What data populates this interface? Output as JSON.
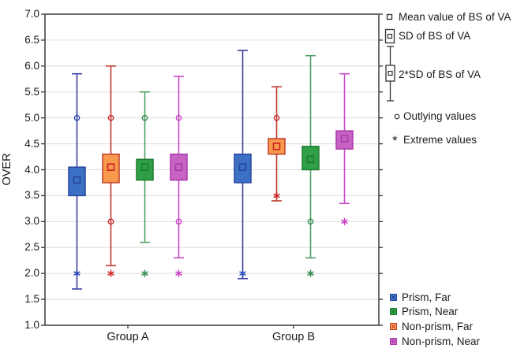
{
  "chart_data": {
    "type": "boxplot",
    "title": "",
    "ylabel": "OVER",
    "ylim": [
      1.0,
      7.0
    ],
    "ytick_step": 0.5,
    "yticks": [
      "7.0",
      "6.5",
      "6.0",
      "5.5",
      "5.0",
      "4.5",
      "4.0",
      "3.5",
      "3.0",
      "2.5",
      "2.0",
      "1.5",
      "1.0"
    ],
    "categories": [
      "Group A",
      "Group B"
    ],
    "grid": true,
    "legend_position": "right",
    "series": [
      {
        "name": "Prism, Far",
        "colors": {
          "fill": "#3B70C4",
          "border": "#27479E",
          "line": "#3A3F9E",
          "marker": "#27479E",
          "point": "#2244BB"
        },
        "boxes": [
          {
            "group": "Group A",
            "mean": 3.8,
            "box_low": 3.5,
            "box_high": 4.05,
            "whisker_low": 1.7,
            "whisker_high": 5.85,
            "outliers": [
              5.0
            ],
            "extremes": [
              2.0
            ]
          },
          {
            "group": "Group B",
            "mean": 4.05,
            "box_low": 3.75,
            "box_high": 4.3,
            "whisker_low": 1.9,
            "whisker_high": 6.3,
            "outliers": [],
            "extremes": [
              2.0
            ]
          }
        ]
      },
      {
        "name": "Non-prism, Far",
        "colors": {
          "fill": "#F79A4D",
          "border": "#C43B28",
          "line": "#C03A2E",
          "marker": "#CC2222",
          "point": "#CC2222"
        },
        "boxes": [
          {
            "group": "Group A",
            "mean": 4.05,
            "box_low": 3.75,
            "box_high": 4.3,
            "whisker_low": 2.15,
            "whisker_high": 6.0,
            "outliers": [
              5.0,
              3.0
            ],
            "extremes": [
              2.0
            ]
          },
          {
            "group": "Group B",
            "mean": 4.45,
            "box_low": 4.3,
            "box_high": 4.6,
            "whisker_low": 3.4,
            "whisker_high": 5.6,
            "outliers": [
              5.0
            ],
            "extremes": [
              3.5
            ]
          }
        ]
      },
      {
        "name": "Prism, Near",
        "colors": {
          "fill": "#2FA046",
          "border": "#1E7A30",
          "line": "#4E9E63",
          "marker": "#1E7A30",
          "point": "#2E8B4A"
        },
        "boxes": [
          {
            "group": "Group A",
            "mean": 4.05,
            "box_low": 3.8,
            "box_high": 4.2,
            "whisker_low": 2.6,
            "whisker_high": 5.5,
            "outliers": [
              5.0
            ],
            "extremes": [
              2.0
            ]
          },
          {
            "group": "Group B",
            "mean": 4.2,
            "box_low": 4.0,
            "box_high": 4.45,
            "whisker_low": 2.3,
            "whisker_high": 6.2,
            "outliers": [
              3.0
            ],
            "extremes": [
              2.0
            ]
          }
        ]
      },
      {
        "name": "Non-prism, Near",
        "colors": {
          "fill": "#C763C3",
          "border": "#A93BA9",
          "line": "#C74BC7",
          "marker": "#A93BA9",
          "point": "#C73BC7"
        },
        "boxes": [
          {
            "group": "Group A",
            "mean": 4.05,
            "box_low": 3.8,
            "box_high": 4.3,
            "whisker_low": 2.3,
            "whisker_high": 5.8,
            "outliers": [
              5.0,
              3.0
            ],
            "extremes": [
              2.0
            ]
          },
          {
            "group": "Group B",
            "mean": 4.6,
            "box_low": 4.4,
            "box_high": 4.75,
            "whisker_low": 3.35,
            "whisker_high": 5.85,
            "outliers": [],
            "extremes": [
              3.0
            ]
          }
        ]
      }
    ]
  },
  "symbol_legend": {
    "mean": "Mean value of BS of  VA",
    "sd": "SD of BS of VA",
    "sd2": "2*SD of BS of VA",
    "outlying": "Outlying values",
    "extreme": "Extreme values",
    "extreme_marker": "*"
  },
  "series_legend": [
    {
      "label": "Prism, Far",
      "fill": "#3B70C4",
      "border": "#27479E"
    },
    {
      "label": "Prism, Near",
      "fill": "#2FA046",
      "border": "#1E7A30"
    },
    {
      "label": "Non-prism, Far",
      "fill": "#F79A4D",
      "border": "#C43B28"
    },
    {
      "label": "Non-prism, Near",
      "fill": "#C763C3",
      "border": "#A93BA9"
    }
  ],
  "axis": {
    "ylabel": "OVER",
    "group_a": "Group A",
    "group_b": "Group B"
  }
}
